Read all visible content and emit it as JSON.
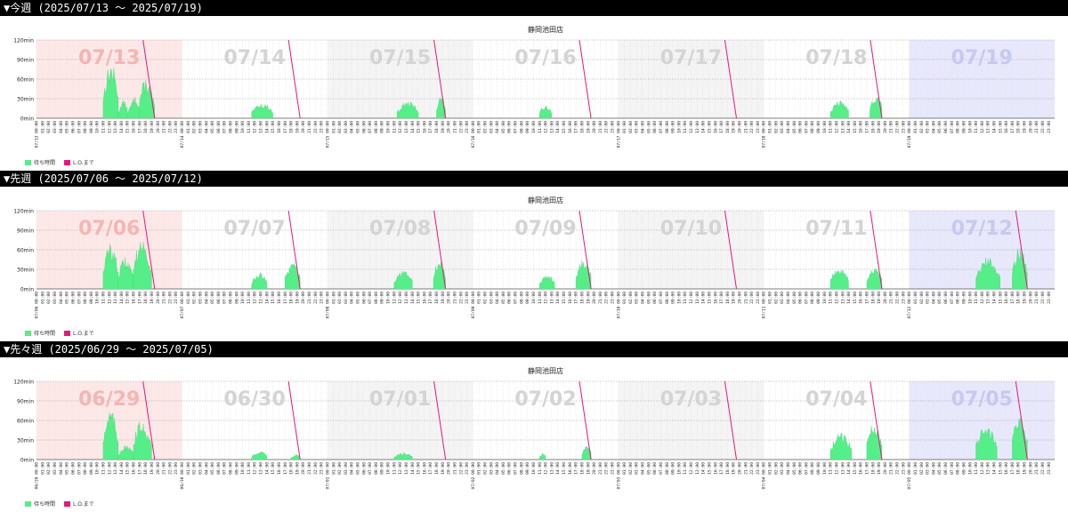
{
  "weeks": [
    {
      "header": "▼今週 (2025/07/13 ～ 2025/07/19)",
      "title": "静岡池田店",
      "legend": [
        "待ち時間",
        "L.O.まで"
      ],
      "days": [
        {
          "label": "07/13",
          "date_tick": "07/13 00:00",
          "weekend": "sun",
          "lo_hour": 19.5,
          "blocks": [
            [
              11,
              13.5,
              72,
              78
            ],
            [
              13.5,
              15,
              20,
              28
            ],
            [
              15,
              17,
              15,
              40
            ],
            [
              17,
              19.5,
              62,
              45
            ]
          ]
        },
        {
          "label": "07/14",
          "date_tick": "07/14 00:00",
          "weekend": "",
          "lo_hour": 19.5,
          "blocks": [
            [
              11.5,
              15,
              20,
              22
            ]
          ]
        },
        {
          "label": "07/15",
          "date_tick": "07/15 00:00",
          "weekend": "",
          "lo_hour": 19.5,
          "blocks": [
            [
              11.5,
              15,
              22,
              24
            ],
            [
              18,
              19.5,
              30,
              34
            ]
          ]
        },
        {
          "label": "07/16",
          "date_tick": "07/16 00:00",
          "weekend": "",
          "lo_hour": 19.5,
          "blocks": [
            [
              11,
              13,
              18,
              20
            ]
          ]
        },
        {
          "label": "07/17",
          "date_tick": "07/17 00:00",
          "weekend": "",
          "lo_hour": 19.5,
          "blocks": []
        },
        {
          "label": "07/18",
          "date_tick": "07/18 00:00",
          "weekend": "",
          "lo_hour": 19.5,
          "blocks": [
            [
              11,
              14,
              22,
              26
            ],
            [
              17.5,
              19.5,
              30,
              38
            ]
          ]
        },
        {
          "label": "07/19",
          "date_tick": "07/19 00:00",
          "weekend": "sat",
          "lo_hour": null,
          "blocks": []
        }
      ]
    },
    {
      "header": "▼先週 (2025/07/06 ～ 2025/07/12)",
      "title": "静岡池田店",
      "legend": [
        "待ち時間",
        "L.O.まで"
      ],
      "days": [
        {
          "label": "07/06",
          "date_tick": "07/06 00:00",
          "weekend": "sun",
          "lo_hour": 19.5,
          "blocks": [
            [
              11,
              13.5,
              65,
              60
            ],
            [
              13.5,
              16,
              45,
              40
            ],
            [
              16,
              19,
              82,
              55
            ]
          ]
        },
        {
          "label": "07/07",
          "date_tick": "07/07 00:00",
          "weekend": "",
          "lo_hour": 19.5,
          "blocks": [
            [
              11.5,
              14,
              20,
              24
            ],
            [
              17,
              19.5,
              35,
              38
            ]
          ]
        },
        {
          "label": "07/08",
          "date_tick": "07/08 00:00",
          "weekend": "",
          "lo_hour": 19.5,
          "blocks": [
            [
              11,
              14,
              25,
              28
            ],
            [
              17.5,
              19.5,
              40,
              42
            ]
          ]
        },
        {
          "label": "07/09",
          "date_tick": "07/09 00:00",
          "weekend": "",
          "lo_hour": 19.5,
          "blocks": [
            [
              11,
              13.5,
              18,
              22
            ],
            [
              17,
              19.5,
              42,
              45
            ]
          ]
        },
        {
          "label": "07/10",
          "date_tick": "07/10 00:00",
          "weekend": "",
          "lo_hour": 19.5,
          "blocks": []
        },
        {
          "label": "07/11",
          "date_tick": "07/11 00:00",
          "weekend": "",
          "lo_hour": 19.5,
          "blocks": [
            [
              11,
              14,
              30,
              32
            ],
            [
              17,
              19.5,
              28,
              32
            ]
          ]
        },
        {
          "label": "07/12",
          "date_tick": "07/12 00:00",
          "weekend": "sat",
          "lo_hour": 19.5,
          "blocks": [
            [
              11,
              15,
              42,
              45
            ],
            [
              17,
              19.5,
              60,
              55
            ]
          ]
        }
      ]
    },
    {
      "header": "▼先々週 (2025/06/29 ～ 2025/07/05)",
      "title": "静岡池田店",
      "legend": [
        "待ち時間",
        "L.O.まで"
      ],
      "days": [
        {
          "label": "06/29",
          "date_tick": "06/29 00:00",
          "weekend": "sun",
          "lo_hour": 19.5,
          "blocks": [
            [
              11,
              13.5,
              72,
              65
            ],
            [
              13.5,
              16,
              18,
              20
            ],
            [
              16,
              19,
              58,
              50
            ]
          ]
        },
        {
          "label": "06/30",
          "date_tick": "06/30 00:00",
          "weekend": "",
          "lo_hour": 19.5,
          "blocks": [
            [
              11.5,
              14,
              10,
              14
            ],
            [
              18,
              19.5,
              6,
              8
            ]
          ]
        },
        {
          "label": "07/01",
          "date_tick": "07/01 00:00",
          "weekend": "",
          "lo_hour": 19.5,
          "blocks": [
            [
              11,
              14,
              8,
              12
            ]
          ]
        },
        {
          "label": "07/02",
          "date_tick": "07/02 00:00",
          "weekend": "",
          "lo_hour": 19.5,
          "blocks": [
            [
              11,
              12,
              8,
              10
            ],
            [
              18,
              19.5,
              18,
              22
            ]
          ]
        },
        {
          "label": "07/03",
          "date_tick": "07/03 00:00",
          "weekend": "",
          "lo_hour": 19.5,
          "blocks": []
        },
        {
          "label": "07/04",
          "date_tick": "07/04 00:00",
          "weekend": "",
          "lo_hour": 19.5,
          "blocks": [
            [
              11,
              14.5,
              35,
              38
            ],
            [
              17,
              19.5,
              55,
              50
            ]
          ]
        },
        {
          "label": "07/05",
          "date_tick": "07/05 00:00",
          "weekend": "sat",
          "lo_hour": 19.5,
          "blocks": [
            [
              11,
              14.5,
              48,
              45
            ],
            [
              17,
              19.5,
              70,
              60
            ]
          ]
        }
      ]
    }
  ],
  "chart_data": [
    {
      "type": "area",
      "title": "静岡池田店",
      "ylim": [
        0,
        120
      ],
      "y_unit": "min",
      "y_ticks": [
        "0min",
        "30min",
        "60min",
        "90min",
        "120min"
      ],
      "series": [
        {
          "name": "待ち時間",
          "color": "#55ee88"
        },
        {
          "name": "L.O.まで",
          "color": "#e8177a"
        }
      ],
      "x_range": [
        "2025/07/13 00:00",
        "2025/07/19 23:59"
      ]
    },
    {
      "type": "area",
      "title": "静岡池田店",
      "ylim": [
        0,
        120
      ],
      "y_unit": "min",
      "y_ticks": [
        "0min",
        "30min",
        "60min",
        "90min",
        "120min"
      ],
      "series": [
        {
          "name": "待ち時間",
          "color": "#55ee88"
        },
        {
          "name": "L.O.まで",
          "color": "#e8177a"
        }
      ],
      "x_range": [
        "2025/07/06 00:00",
        "2025/07/12 23:59"
      ]
    },
    {
      "type": "area",
      "title": "静岡池田店",
      "ylim": [
        0,
        120
      ],
      "y_unit": "min",
      "y_ticks": [
        "0min",
        "30min",
        "60min",
        "90min",
        "120min"
      ],
      "series": [
        {
          "name": "待ち時間",
          "color": "#55ee88"
        },
        {
          "name": "L.O.まで",
          "color": "#e8177a"
        }
      ],
      "x_range": [
        "2025/06/29 00:00",
        "2025/07/05 23:59"
      ]
    }
  ],
  "colors": {
    "wait": "#55ee88",
    "lo_line": "#e8177a",
    "sunday_bg": "#fde8e8",
    "saturday_bg": "#e8e8fc",
    "weekday_bg": "#f4f4f4",
    "label_sun": "#f5b5b5",
    "label_sat": "#c8c8f0",
    "label_weekday": "#d4d4d4"
  }
}
